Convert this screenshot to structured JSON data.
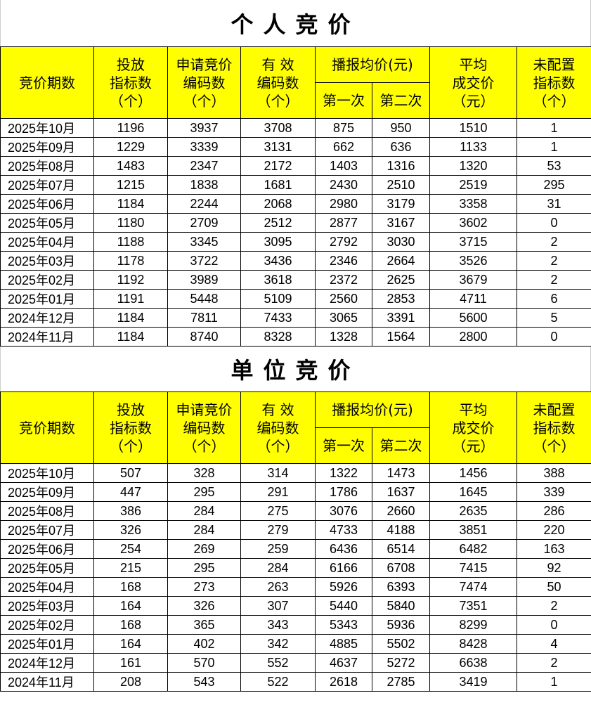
{
  "headers": {
    "period": "竞价期数",
    "quota": [
      "投放",
      "指标数",
      "（个）"
    ],
    "applied": [
      "申请竞价",
      "编码数",
      "（个）"
    ],
    "valid": [
      "有 效",
      "编码数",
      "（个）"
    ],
    "reported": "播报均价(元)",
    "first": "第一次",
    "second": "第二次",
    "avg": [
      "平均",
      "成交价",
      "（元）"
    ],
    "unallocated": [
      "未配置",
      "指标数",
      "（个）"
    ]
  },
  "tables": [
    {
      "title": "个人竞价",
      "rows": [
        [
          "2025年10月",
          "1196",
          "3937",
          "3708",
          "875",
          "950",
          "1510",
          "1"
        ],
        [
          "2025年09月",
          "1229",
          "3339",
          "3131",
          "662",
          "636",
          "1133",
          "1"
        ],
        [
          "2025年08月",
          "1483",
          "2347",
          "2172",
          "1403",
          "1316",
          "1320",
          "53"
        ],
        [
          "2025年07月",
          "1215",
          "1838",
          "1681",
          "2430",
          "2510",
          "2519",
          "295"
        ],
        [
          "2025年06月",
          "1184",
          "2244",
          "2068",
          "2980",
          "3179",
          "3358",
          "31"
        ],
        [
          "2025年05月",
          "1180",
          "2709",
          "2512",
          "2877",
          "3167",
          "3602",
          "0"
        ],
        [
          "2025年04月",
          "1188",
          "3345",
          "3095",
          "2792",
          "3030",
          "3715",
          "2"
        ],
        [
          "2025年03月",
          "1178",
          "3722",
          "3436",
          "2346",
          "2664",
          "3526",
          "2"
        ],
        [
          "2025年02月",
          "1192",
          "3989",
          "3618",
          "2372",
          "2625",
          "3679",
          "2"
        ],
        [
          "2025年01月",
          "1191",
          "5448",
          "5109",
          "2560",
          "2853",
          "4711",
          "6"
        ],
        [
          "2024年12月",
          "1184",
          "7811",
          "7433",
          "3065",
          "3391",
          "5600",
          "5"
        ],
        [
          "2024年11月",
          "1184",
          "8740",
          "8328",
          "1328",
          "1564",
          "2800",
          "0"
        ]
      ]
    },
    {
      "title": "单位竞价",
      "rows": [
        [
          "2025年10月",
          "507",
          "328",
          "314",
          "1322",
          "1473",
          "1456",
          "388"
        ],
        [
          "2025年09月",
          "447",
          "295",
          "291",
          "1786",
          "1637",
          "1645",
          "339"
        ],
        [
          "2025年08月",
          "386",
          "284",
          "275",
          "3076",
          "2660",
          "2635",
          "286"
        ],
        [
          "2025年07月",
          "326",
          "284",
          "279",
          "4733",
          "4188",
          "3851",
          "220"
        ],
        [
          "2025年06月",
          "254",
          "269",
          "259",
          "6436",
          "6514",
          "6482",
          "163"
        ],
        [
          "2025年05月",
          "215",
          "295",
          "284",
          "6166",
          "6708",
          "7415",
          "92"
        ],
        [
          "2025年04月",
          "168",
          "273",
          "263",
          "5926",
          "6393",
          "7474",
          "50"
        ],
        [
          "2025年03月",
          "164",
          "326",
          "307",
          "5440",
          "5840",
          "7351",
          "2"
        ],
        [
          "2025年02月",
          "168",
          "365",
          "343",
          "5343",
          "5936",
          "8299",
          "0"
        ],
        [
          "2025年01月",
          "164",
          "402",
          "342",
          "4885",
          "5502",
          "8428",
          "4"
        ],
        [
          "2024年12月",
          "161",
          "570",
          "552",
          "4637",
          "5272",
          "6638",
          "2"
        ],
        [
          "2024年11月",
          "208",
          "543",
          "522",
          "2618",
          "2785",
          "3419",
          "1"
        ]
      ]
    }
  ],
  "colors": {
    "header_bg": "#ffff00",
    "border": "#000000"
  }
}
